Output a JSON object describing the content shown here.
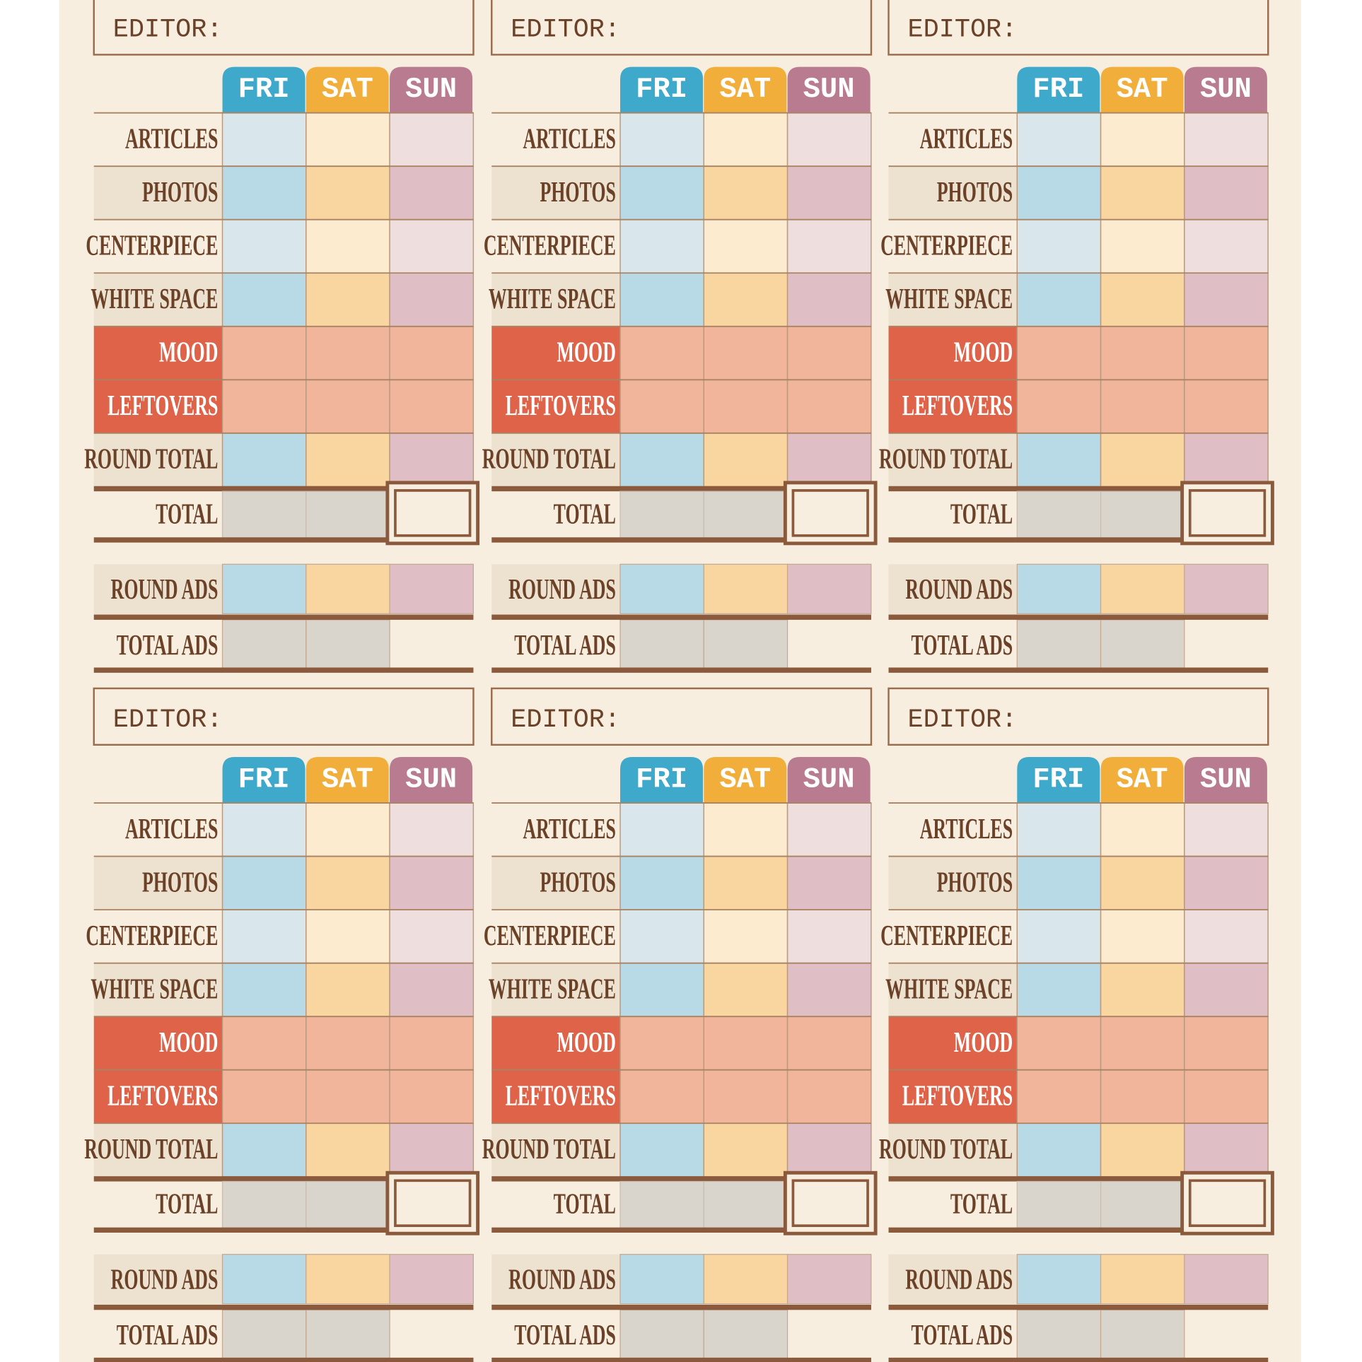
{
  "sheets": [
    {
      "editor": "EDITOR:",
      "days": [
        "FRI",
        "SAT",
        "SUN"
      ],
      "rows": [
        "ARTICLES",
        "PHOTOS",
        "CENTERPIECE",
        "WHITE SPACE",
        "MOOD",
        "LEFTOVERS",
        "ROUND TOTAL"
      ],
      "total": "TOTAL",
      "ads": [
        "ROUND ADS",
        "TOTAL ADS"
      ]
    },
    {
      "editor": "EDITOR:",
      "days": [
        "FRI",
        "SAT",
        "SUN"
      ],
      "rows": [
        "ARTICLES",
        "PHOTOS",
        "CENTERPIECE",
        "WHITE SPACE",
        "MOOD",
        "LEFTOVERS",
        "ROUND TOTAL"
      ],
      "total": "TOTAL",
      "ads": [
        "ROUND ADS",
        "TOTAL ADS"
      ]
    },
    {
      "editor": "EDITOR:",
      "days": [
        "FRI",
        "SAT",
        "SUN"
      ],
      "rows": [
        "ARTICLES",
        "PHOTOS",
        "CENTERPIECE",
        "WHITE SPACE",
        "MOOD",
        "LEFTOVERS",
        "ROUND TOTAL"
      ],
      "total": "TOTAL",
      "ads": [
        "ROUND ADS",
        "TOTAL ADS"
      ]
    },
    {
      "editor": "EDITOR:",
      "days": [
        "FRI",
        "SAT",
        "SUN"
      ],
      "rows": [
        "ARTICLES",
        "PHOTOS",
        "CENTERPIECE",
        "WHITE SPACE",
        "MOOD",
        "LEFTOVERS",
        "ROUND TOTAL"
      ],
      "total": "TOTAL",
      "ads": [
        "ROUND ADS",
        "TOTAL ADS"
      ]
    },
    {
      "editor": "EDITOR:",
      "days": [
        "FRI",
        "SAT",
        "SUN"
      ],
      "rows": [
        "ARTICLES",
        "PHOTOS",
        "CENTERPIECE",
        "WHITE SPACE",
        "MOOD",
        "LEFTOVERS",
        "ROUND TOTAL"
      ],
      "total": "TOTAL",
      "ads": [
        "ROUND ADS",
        "TOTAL ADS"
      ]
    },
    {
      "editor": "EDITOR:",
      "days": [
        "FRI",
        "SAT",
        "SUN"
      ],
      "rows": [
        "ARTICLES",
        "PHOTOS",
        "CENTERPIECE",
        "WHITE SPACE",
        "MOOD",
        "LEFTOVERS",
        "ROUND TOTAL"
      ],
      "total": "TOTAL",
      "ads": [
        "ROUND ADS",
        "TOTAL ADS"
      ]
    }
  ]
}
